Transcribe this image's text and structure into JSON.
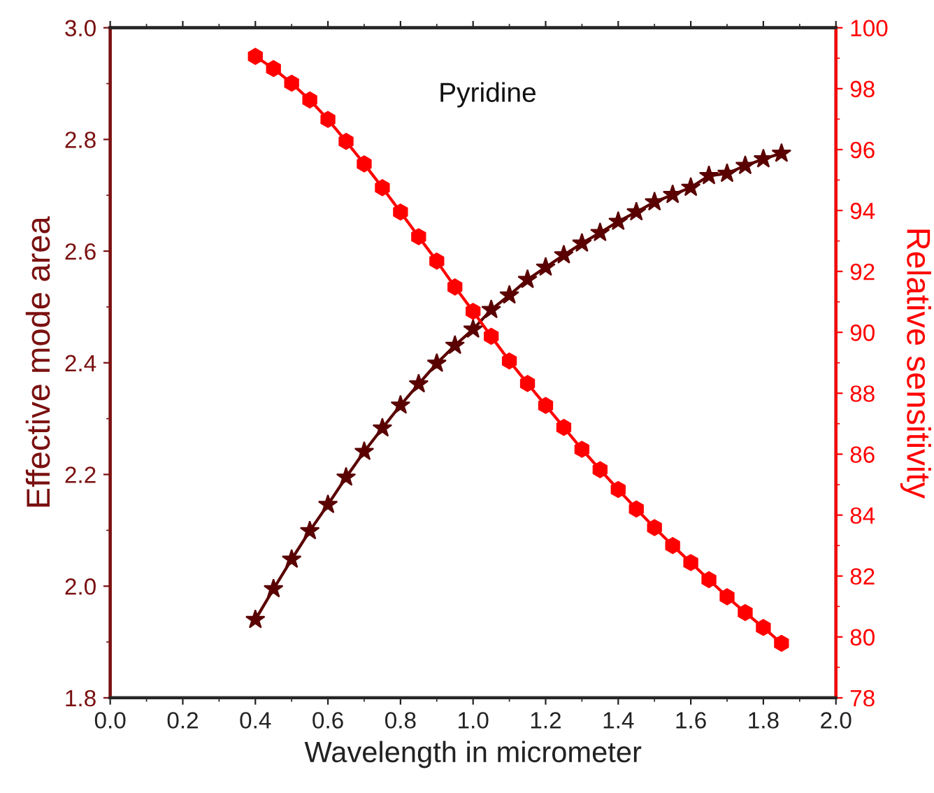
{
  "chart_data": {
    "type": "line",
    "annotations": [
      "Pyridine"
    ],
    "xlabel": "Wavelength in micrometer",
    "ylabel": "Effective mode area",
    "y2label": "Relative sensitivity",
    "x": [
      0.4,
      0.45,
      0.5,
      0.55,
      0.6,
      0.65,
      0.7,
      0.75,
      0.8,
      0.85,
      0.9,
      0.95,
      1.0,
      1.05,
      1.1,
      1.15,
      1.2,
      1.25,
      1.3,
      1.35,
      1.4,
      1.45,
      1.5,
      1.55,
      1.6,
      1.65,
      1.7,
      1.75,
      1.8,
      1.85
    ],
    "series": [
      {
        "color": "#5a0000",
        "marker": "star",
        "axis": "y",
        "values": [
          1.94,
          1.995,
          2.048,
          2.099,
          2.146,
          2.195,
          2.241,
          2.283,
          2.324,
          2.362,
          2.399,
          2.431,
          2.46,
          2.495,
          2.521,
          2.549,
          2.571,
          2.593,
          2.614,
          2.633,
          2.653,
          2.67,
          2.688,
          2.701,
          2.714,
          2.735,
          2.739,
          2.753,
          2.765,
          2.775
        ]
      },
      {
        "color": "#ff0000",
        "marker": "circle",
        "axis": "y2",
        "values": [
          99.06,
          98.66,
          98.18,
          97.63,
          96.99,
          96.27,
          95.53,
          94.75,
          93.95,
          93.14,
          92.34,
          91.49,
          90.69,
          89.87,
          89.06,
          88.32,
          87.6,
          86.88,
          86.16,
          85.49,
          84.84,
          84.2,
          83.59,
          83.0,
          82.44,
          81.88,
          81.32,
          80.8,
          80.31,
          79.79
        ]
      }
    ],
    "xlim": [
      0.0,
      2.0
    ],
    "xticks": [
      {
        "value": 0.0,
        "label": "0.0"
      },
      0.2,
      0.4,
      0.6,
      0.8,
      {
        "value": 1.0,
        "label": "1.0"
      },
      1.2,
      1.4,
      1.6,
      1.8,
      {
        "value": 2.0,
        "label": "2.0"
      }
    ],
    "ylim": [
      1.8,
      3.0
    ],
    "yticks": [
      1.8,
      {
        "value": 2.0,
        "label": "2.0"
      },
      2.2,
      2.4,
      2.6,
      2.8,
      {
        "value": 3.0,
        "label": "3.0"
      }
    ],
    "y2lim": [
      78,
      100
    ],
    "y2ticks": [
      78,
      80,
      82,
      84,
      86,
      88,
      90,
      92,
      94,
      96,
      98,
      100
    ],
    "grid": false,
    "legend": false,
    "line_style": "solid"
  }
}
